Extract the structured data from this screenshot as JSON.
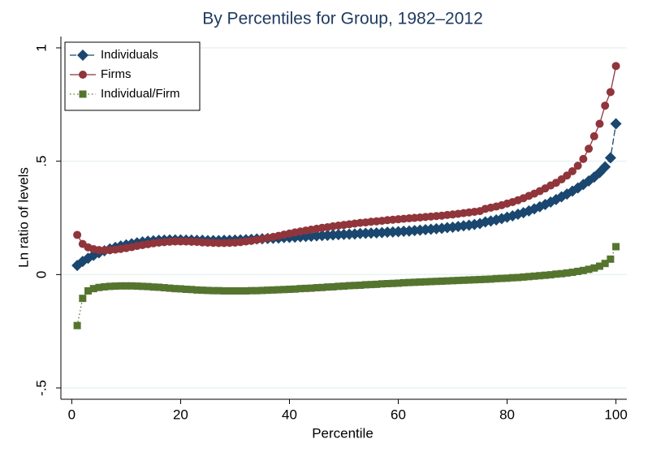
{
  "chart_data": {
    "type": "line",
    "title": "By Percentiles for Group, 1982–2012",
    "xlabel": "Percentile",
    "ylabel": "Ln ratio of levels",
    "xlim": [
      -2,
      102
    ],
    "ylim": [
      -0.55,
      1.05
    ],
    "xticks": [
      0,
      20,
      40,
      60,
      80,
      100
    ],
    "yticks": [
      {
        "value": -0.5,
        "label": "-.5"
      },
      0,
      {
        "value": 0.5,
        "label": ".5"
      },
      1
    ],
    "grid": true,
    "legend": "top-left",
    "x": [
      1,
      2,
      3,
      4,
      5,
      6,
      7,
      8,
      9,
      10,
      11,
      12,
      13,
      14,
      15,
      16,
      17,
      18,
      19,
      20,
      21,
      22,
      23,
      24,
      25,
      26,
      27,
      28,
      29,
      30,
      31,
      32,
      33,
      34,
      35,
      36,
      37,
      38,
      39,
      40,
      41,
      42,
      43,
      44,
      45,
      46,
      47,
      48,
      49,
      50,
      51,
      52,
      53,
      54,
      55,
      56,
      57,
      58,
      59,
      60,
      61,
      62,
      63,
      64,
      65,
      66,
      67,
      68,
      69,
      70,
      71,
      72,
      73,
      74,
      75,
      76,
      77,
      78,
      79,
      80,
      81,
      82,
      83,
      84,
      85,
      86,
      87,
      88,
      89,
      90,
      91,
      92,
      93,
      94,
      95,
      96,
      97,
      98,
      99,
      100
    ],
    "series": [
      {
        "name": "Individuals",
        "color": "#1a476f",
        "marker": "diamond",
        "line_style": "dash",
        "values": [
          0.04,
          0.058,
          0.072,
          0.085,
          0.096,
          0.105,
          0.113,
          0.12,
          0.126,
          0.131,
          0.136,
          0.14,
          0.144,
          0.147,
          0.149,
          0.151,
          0.152,
          0.153,
          0.153,
          0.153,
          0.152,
          0.152,
          0.151,
          0.151,
          0.15,
          0.15,
          0.15,
          0.151,
          0.151,
          0.152,
          0.153,
          0.154,
          0.155,
          0.157,
          0.158,
          0.159,
          0.16,
          0.161,
          0.163,
          0.164,
          0.165,
          0.167,
          0.168,
          0.169,
          0.171,
          0.172,
          0.173,
          0.175,
          0.176,
          0.177,
          0.178,
          0.179,
          0.181,
          0.182,
          0.183,
          0.184,
          0.185,
          0.187,
          0.188,
          0.189,
          0.191,
          0.192,
          0.194,
          0.196,
          0.198,
          0.2,
          0.202,
          0.204,
          0.207,
          0.209,
          0.212,
          0.215,
          0.218,
          0.221,
          0.225,
          0.232,
          0.236,
          0.241,
          0.247,
          0.253,
          0.259,
          0.266,
          0.273,
          0.281,
          0.29,
          0.299,
          0.309,
          0.32,
          0.331,
          0.343,
          0.355,
          0.368,
          0.382,
          0.397,
          0.413,
          0.43,
          0.45,
          0.475,
          0.515,
          0.665
        ]
      },
      {
        "name": "Firms",
        "color": "#90353b",
        "marker": "circle",
        "line_style": "solid",
        "values": [
          0.175,
          0.135,
          0.12,
          0.112,
          0.108,
          0.107,
          0.108,
          0.11,
          0.113,
          0.117,
          0.121,
          0.126,
          0.13,
          0.134,
          0.138,
          0.141,
          0.143,
          0.145,
          0.146,
          0.146,
          0.146,
          0.145,
          0.144,
          0.142,
          0.141,
          0.14,
          0.139,
          0.139,
          0.14,
          0.141,
          0.143,
          0.146,
          0.149,
          0.153,
          0.157,
          0.162,
          0.166,
          0.171,
          0.176,
          0.181,
          0.186,
          0.19,
          0.194,
          0.198,
          0.202,
          0.206,
          0.209,
          0.213,
          0.216,
          0.219,
          0.222,
          0.225,
          0.228,
          0.23,
          0.233,
          0.235,
          0.237,
          0.24,
          0.242,
          0.244,
          0.246,
          0.248,
          0.25,
          0.252,
          0.254,
          0.256,
          0.258,
          0.26,
          0.263,
          0.265,
          0.268,
          0.271,
          0.274,
          0.277,
          0.28,
          0.29,
          0.295,
          0.3,
          0.306,
          0.313,
          0.32,
          0.328,
          0.337,
          0.347,
          0.357,
          0.368,
          0.38,
          0.393,
          0.405,
          0.42,
          0.437,
          0.456,
          0.48,
          0.51,
          0.555,
          0.61,
          0.665,
          0.745,
          0.805,
          0.92
        ]
      },
      {
        "name": "Individual/Firm",
        "color": "#55752f",
        "marker": "square",
        "line_style": "dot",
        "values": [
          -0.225,
          -0.105,
          -0.072,
          -0.062,
          -0.057,
          -0.054,
          -0.052,
          -0.051,
          -0.05,
          -0.05,
          -0.05,
          -0.051,
          -0.052,
          -0.053,
          -0.055,
          -0.056,
          -0.058,
          -0.06,
          -0.062,
          -0.063,
          -0.065,
          -0.066,
          -0.068,
          -0.069,
          -0.07,
          -0.071,
          -0.071,
          -0.072,
          -0.072,
          -0.072,
          -0.072,
          -0.072,
          -0.071,
          -0.071,
          -0.07,
          -0.069,
          -0.068,
          -0.067,
          -0.066,
          -0.065,
          -0.064,
          -0.062,
          -0.061,
          -0.06,
          -0.058,
          -0.057,
          -0.055,
          -0.054,
          -0.052,
          -0.051,
          -0.049,
          -0.048,
          -0.047,
          -0.045,
          -0.044,
          -0.043,
          -0.041,
          -0.04,
          -0.039,
          -0.038,
          -0.036,
          -0.035,
          -0.034,
          -0.033,
          -0.032,
          -0.031,
          -0.03,
          -0.029,
          -0.028,
          -0.027,
          -0.026,
          -0.025,
          -0.024,
          -0.023,
          -0.022,
          -0.021,
          -0.02,
          -0.018,
          -0.017,
          -0.016,
          -0.014,
          -0.013,
          -0.011,
          -0.009,
          -0.007,
          -0.005,
          -0.003,
          -0.001,
          0.002,
          0.004,
          0.007,
          0.01,
          0.014,
          0.018,
          0.023,
          0.029,
          0.037,
          0.049,
          0.068,
          0.123
        ]
      }
    ]
  }
}
